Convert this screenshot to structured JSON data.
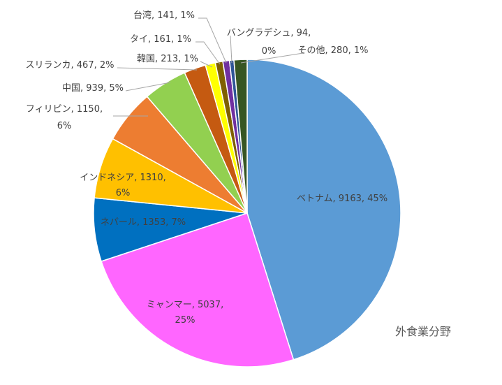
{
  "chart_data": {
    "type": "pie",
    "caption": "外食業分野",
    "slices": [
      {
        "name": "ベトナム",
        "value": 9163,
        "pct": "45%",
        "color": "#5b9bd5"
      },
      {
        "name": "ミャンマー",
        "value": 5037,
        "pct": "25%",
        "color": "#ff66ff"
      },
      {
        "name": "ネパール",
        "value": 1353,
        "pct": "7%",
        "color": "#0070c0"
      },
      {
        "name": "インドネシア",
        "value": 1310,
        "pct": "6%",
        "color": "#ffc000"
      },
      {
        "name": "フィリピン",
        "value": 1150,
        "pct": "6%",
        "color": "#ed7d31"
      },
      {
        "name": "中国",
        "value": 939,
        "pct": "5%",
        "color": "#92d050"
      },
      {
        "name": "スリランカ",
        "value": 467,
        "pct": "2%",
        "color": "#c55a11"
      },
      {
        "name": "韓国",
        "value": 213,
        "pct": "1%",
        "color": "#ffff00"
      },
      {
        "name": "タイ",
        "value": 161,
        "pct": "1%",
        "color": "#7f6000"
      },
      {
        "name": "台湾",
        "value": 141,
        "pct": "1%",
        "color": "#7030a0"
      },
      {
        "name": "バングラデシュ",
        "value": 94,
        "pct": "0%",
        "color": "#2f5597"
      },
      {
        "name": "その他",
        "value": 280,
        "pct": "1%",
        "color": "#375623"
      }
    ]
  }
}
